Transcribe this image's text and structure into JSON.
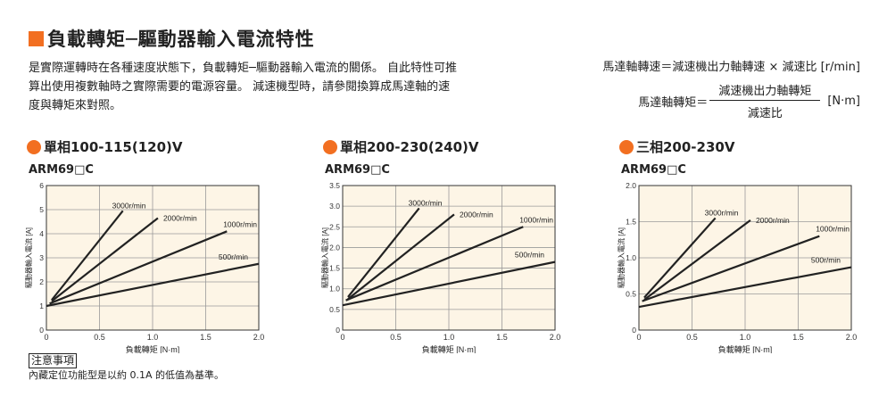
{
  "colors": {
    "accent": "#f26f21",
    "plot_bg": "#fdf5e6",
    "grid": "#9a9a9a",
    "line": "#222222"
  },
  "title": "負載轉矩─驅動器輸入電流特性",
  "description": "是實際運轉時在各種速度狀態下，負載轉矩─驅動器輸入電流的關係。 自此特性可推算出使用複數軸時之實際需要的電源容量。 減速機型時，請參閱換算成馬達軸的速度與轉矩來對照。",
  "formula": {
    "line1": "馬達軸轉速＝減速機出力軸轉速 × 減速比 [r/min]",
    "line2_left": "馬達軸轉矩＝",
    "line2_num": "減速機出力軸轉矩",
    "line2_den": "減速比",
    "line2_unit": "[N·m]"
  },
  "sections": [
    {
      "heading": "單相100-115(120)V",
      "model": "ARM69□C"
    },
    {
      "heading": "單相200-230(240)V",
      "model": "ARM69□C"
    },
    {
      "heading": "三相200-230V",
      "model": "ARM69□C"
    }
  ],
  "note": {
    "heading": "注意事項",
    "text": "內藏定位功能型是以約 0.1A 的低值為基準。"
  },
  "chart_data": [
    {
      "type": "line",
      "xlabel": "負載轉矩 [N·m]",
      "ylabel": "驅動器輸入電流 [A]",
      "xlim": [
        0,
        2.0
      ],
      "ylim": [
        0,
        6
      ],
      "xticks": [
        "0",
        "0.5",
        "1.0",
        "1.5",
        "2.0"
      ],
      "yticks": [
        "0",
        "1",
        "2",
        "3",
        "4",
        "5",
        "6"
      ],
      "grid": true,
      "series": [
        {
          "name": "3000r/min",
          "x": [
            0.05,
            0.72
          ],
          "y": [
            1.25,
            4.95
          ]
        },
        {
          "name": "2000r/min",
          "x": [
            0.05,
            1.05
          ],
          "y": [
            1.2,
            4.65
          ]
        },
        {
          "name": "1000r/min",
          "x": [
            0.03,
            1.7
          ],
          "y": [
            1.1,
            4.1
          ]
        },
        {
          "name": "500r/min",
          "x": [
            0.0,
            2.0
          ],
          "y": [
            1.0,
            2.75
          ]
        }
      ]
    },
    {
      "type": "line",
      "xlabel": "負載轉矩 [N·m]",
      "ylabel": "驅動器輸入電流 [A]",
      "xlim": [
        0,
        2.0
      ],
      "ylim": [
        0,
        3.5
      ],
      "xticks": [
        "0",
        "0.5",
        "1.0",
        "1.5",
        "2.0"
      ],
      "yticks": [
        "0",
        "0.5",
        "1.0",
        "1.5",
        "2.0",
        "2.5",
        "3.0",
        "3.5"
      ],
      "grid": true,
      "series": [
        {
          "name": "3000r/min",
          "x": [
            0.05,
            0.72
          ],
          "y": [
            0.8,
            2.95
          ]
        },
        {
          "name": "2000r/min",
          "x": [
            0.05,
            1.05
          ],
          "y": [
            0.75,
            2.8
          ]
        },
        {
          "name": "1000r/min",
          "x": [
            0.03,
            1.7
          ],
          "y": [
            0.72,
            2.5
          ]
        },
        {
          "name": "500r/min",
          "x": [
            0.0,
            2.0
          ],
          "y": [
            0.6,
            1.65
          ]
        }
      ]
    },
    {
      "type": "line",
      "xlabel": "負載轉矩 [N·m]",
      "ylabel": "驅動器輸入電流 [A]",
      "xlim": [
        0,
        2.0
      ],
      "ylim": [
        0,
        2.0
      ],
      "xticks": [
        "0",
        "0.5",
        "1.0",
        "1.5",
        "2.0"
      ],
      "yticks": [
        "0",
        "0.5",
        "1.0",
        "1.5",
        "2.0"
      ],
      "grid": true,
      "series": [
        {
          "name": "3000r/min",
          "x": [
            0.05,
            0.72
          ],
          "y": [
            0.45,
            1.55
          ]
        },
        {
          "name": "2000r/min",
          "x": [
            0.05,
            1.05
          ],
          "y": [
            0.42,
            1.52
          ]
        },
        {
          "name": "1000r/min",
          "x": [
            0.03,
            1.7
          ],
          "y": [
            0.4,
            1.3
          ]
        },
        {
          "name": "500r/min",
          "x": [
            0.0,
            2.0
          ],
          "y": [
            0.32,
            0.87
          ]
        }
      ]
    }
  ]
}
